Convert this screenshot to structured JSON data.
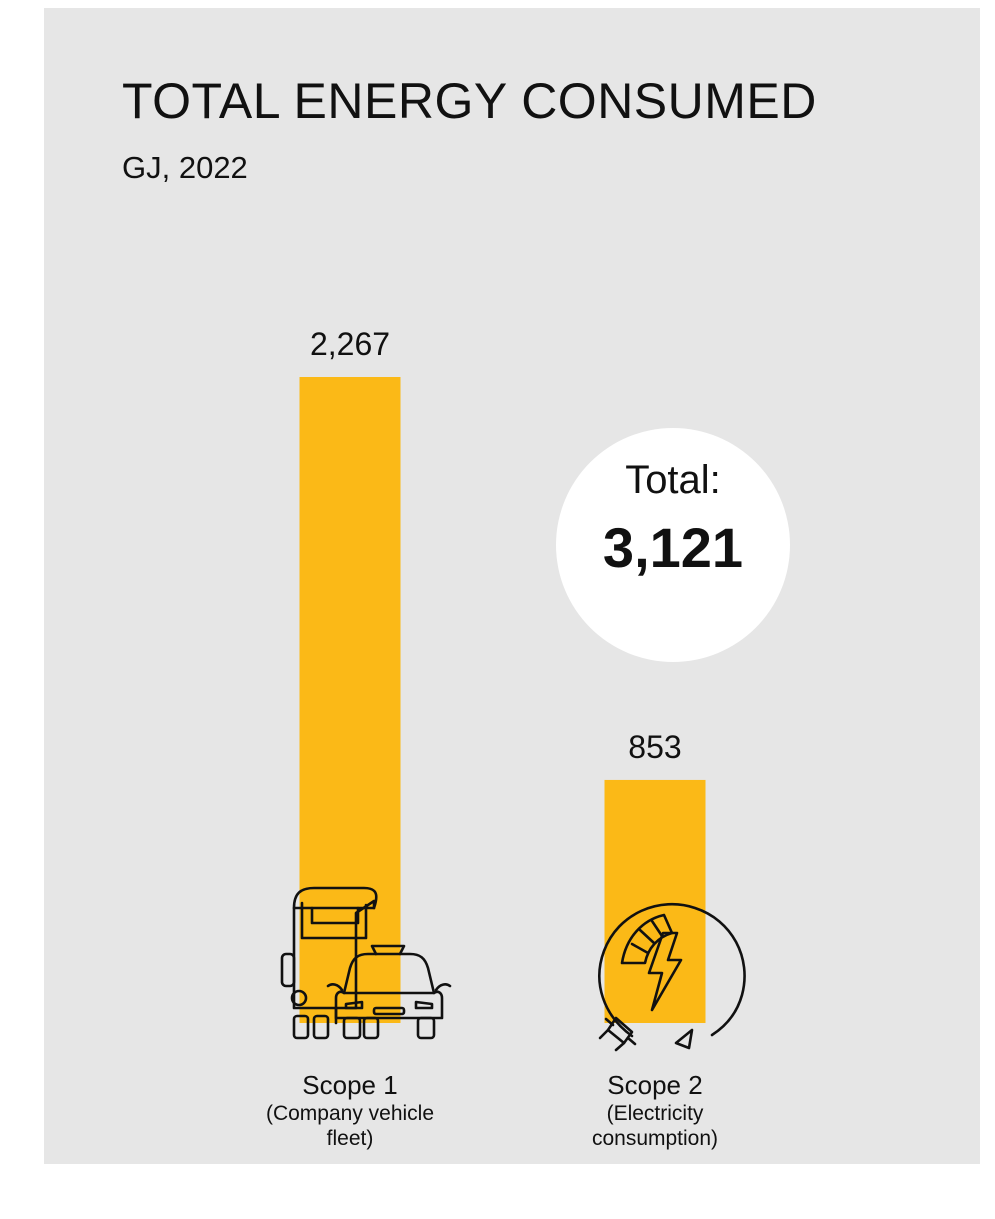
{
  "chart_data": {
    "type": "bar",
    "title": "TOTAL ENERGY CONSUMED",
    "subtitle": "GJ, 2022",
    "categories": [
      "Scope 1",
      "Scope 2"
    ],
    "category_notes": [
      "(Company vehicle fleet)",
      "(Electricity consumption)"
    ],
    "values": [
      2267,
      853
    ],
    "value_labels": [
      "2,267",
      "853"
    ],
    "total_label": "Total:",
    "total_value": "3,121",
    "bar_color": "#fbb917",
    "icons": [
      "truck-and-car-icon",
      "electricity-gauge-plug-icon"
    ]
  }
}
